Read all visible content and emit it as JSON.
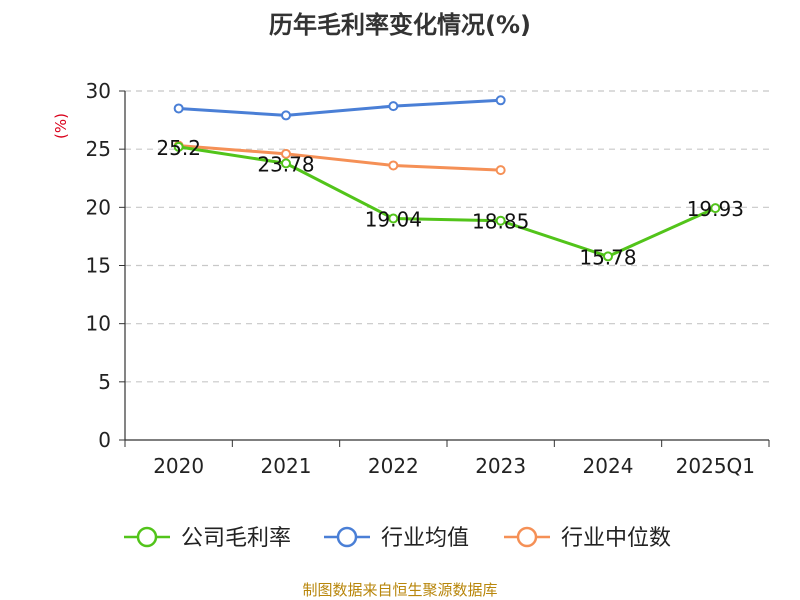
{
  "chart_data": {
    "type": "line",
    "title": "历年毛利率变化情况(%)",
    "ylabel": "(%)",
    "xlabel": "",
    "categories": [
      "2020",
      "2021",
      "2022",
      "2023",
      "2024",
      "2025Q1"
    ],
    "ylim": [
      0,
      30
    ],
    "yticks": [
      0,
      5,
      10,
      15,
      20,
      25,
      30
    ],
    "grid": true,
    "legend_position": "bottom",
    "series": [
      {
        "name": "公司毛利率",
        "color": "#52c41a",
        "values": [
          25.2,
          23.78,
          19.04,
          18.85,
          15.78,
          19.93
        ],
        "labels": [
          "25.2",
          "23.78",
          "19.04",
          "18.85",
          "15.78",
          "19.93"
        ]
      },
      {
        "name": "行业均值",
        "color": "#4a7fd6",
        "values": [
          28.5,
          27.9,
          28.7,
          29.2,
          null,
          null
        ]
      },
      {
        "name": "行业中位数",
        "color": "#f59056",
        "values": [
          25.3,
          24.6,
          23.6,
          23.2,
          null,
          null
        ]
      }
    ]
  },
  "footer": {
    "source": "制图数据来自恒生聚源数据库"
  }
}
